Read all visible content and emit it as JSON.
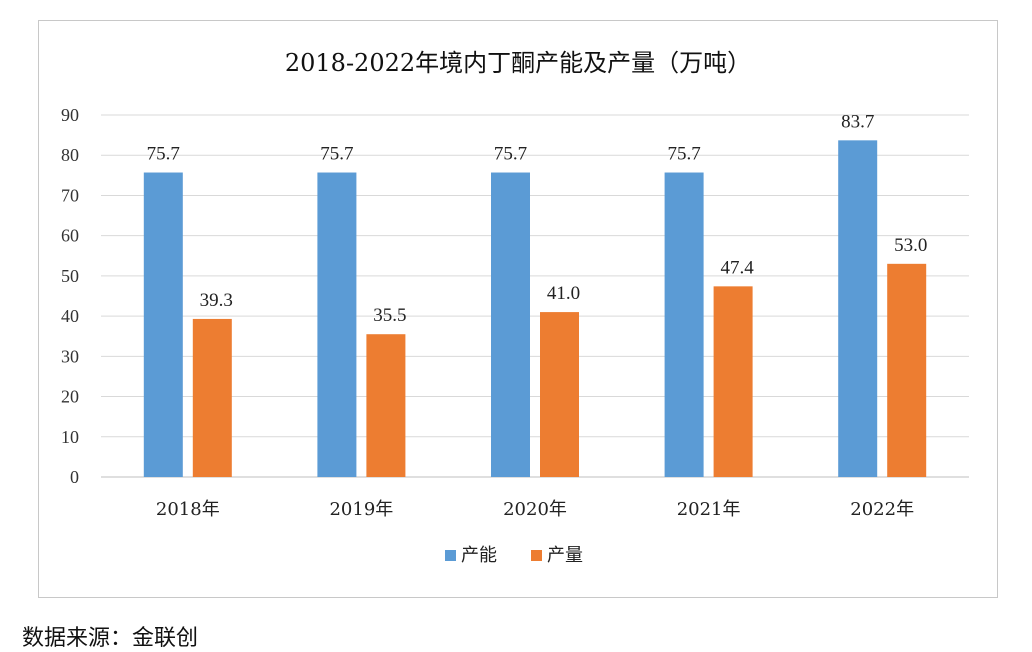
{
  "chart_data": {
    "type": "bar",
    "title": "2018-2022年境内丁酮产能及产量（万吨）",
    "categories": [
      "2018年",
      "2019年",
      "2020年",
      "2021年",
      "2022年"
    ],
    "series": [
      {
        "name": "产能",
        "values": [
          75.7,
          75.7,
          75.7,
          75.7,
          83.7
        ],
        "color": "#5B9BD5",
        "labels": [
          "75.7",
          "75.7",
          "75.7",
          "75.7",
          "83.7"
        ]
      },
      {
        "name": "产量",
        "values": [
          39.3,
          35.5,
          41.0,
          47.4,
          53.0
        ],
        "color": "#ED7D31",
        "labels": [
          "39.3",
          "35.5",
          "41.0",
          "47.4",
          "53.0"
        ]
      }
    ],
    "ylim": [
      0,
      90
    ],
    "yticks": [
      0,
      10,
      20,
      30,
      40,
      50,
      60,
      70,
      80,
      90
    ],
    "grid": true,
    "legend": "bottom-center"
  },
  "source_note": "数据来源：金联创"
}
